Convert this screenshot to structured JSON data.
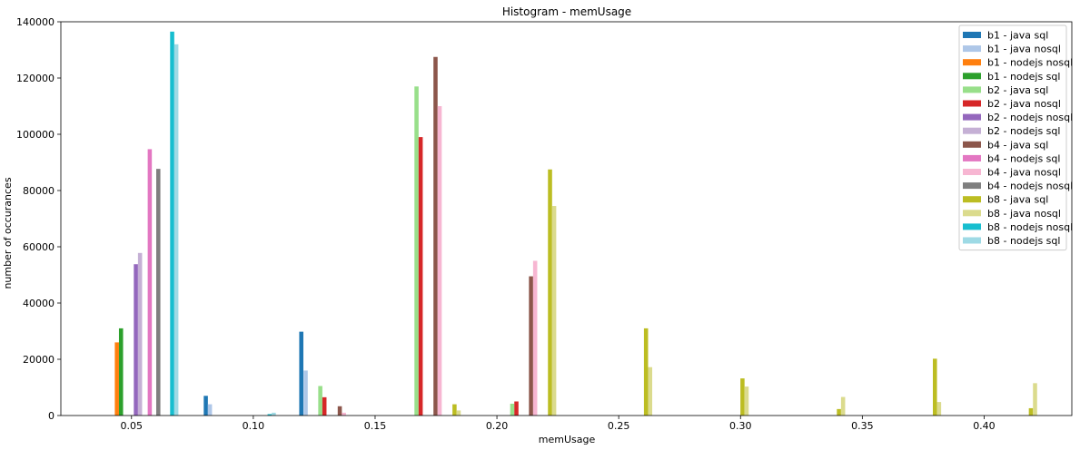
{
  "chart_data": {
    "type": "bar",
    "title": "Histogram - memUsage",
    "xlabel": "memUsage",
    "ylabel": "number of occurances",
    "xlim": [
      0.021,
      0.436
    ],
    "ylim": [
      0,
      140000
    ],
    "xticks": [
      0.05,
      0.1,
      0.15,
      0.2,
      0.25,
      0.3,
      0.35,
      0.4
    ],
    "xtick_labels": [
      "0.05",
      "0.10",
      "0.15",
      "0.20",
      "0.25",
      "0.30",
      "0.35",
      "0.40"
    ],
    "yticks": [
      0,
      20000,
      40000,
      60000,
      80000,
      100000,
      120000,
      140000
    ],
    "ytick_labels": [
      "0",
      "20000",
      "40000",
      "60000",
      "80000",
      "100000",
      "120000",
      "140000"
    ],
    "bar_width": 0.0017,
    "legend_position": "top-right",
    "grid": false,
    "series": [
      {
        "name": "b1 - java sql",
        "color": "#1f77b4",
        "points": [
          {
            "x": 0.0805,
            "y": 7000
          },
          {
            "x": 0.1197,
            "y": 29800
          }
        ]
      },
      {
        "name": "b1 - java nosql",
        "color": "#aec7e8",
        "points": [
          {
            "x": 0.0822,
            "y": 4000
          },
          {
            "x": 0.1215,
            "y": 16000
          }
        ]
      },
      {
        "name": "b1 - nodejs nosql",
        "color": "#ff7f0e",
        "points": [
          {
            "x": 0.044,
            "y": 26000
          }
        ]
      },
      {
        "name": "b1 - nodejs sql",
        "color": "#2ca02c",
        "points": [
          {
            "x": 0.0457,
            "y": 31000
          }
        ]
      },
      {
        "name": "b2 - java sql",
        "color": "#98df8a",
        "points": [
          {
            "x": 0.1275,
            "y": 10500
          },
          {
            "x": 0.167,
            "y": 117000
          },
          {
            "x": 0.2063,
            "y": 4200
          }
        ]
      },
      {
        "name": "b2 - java nosql",
        "color": "#d62728",
        "points": [
          {
            "x": 0.1292,
            "y": 6500
          },
          {
            "x": 0.1687,
            "y": 99000
          },
          {
            "x": 0.208,
            "y": 5000
          }
        ]
      },
      {
        "name": "b2 - nodejs nosql",
        "color": "#9467bd",
        "points": [
          {
            "x": 0.0518,
            "y": 53800
          }
        ]
      },
      {
        "name": "b2 - nodejs sql",
        "color": "#c5b0d5",
        "points": [
          {
            "x": 0.0535,
            "y": 57800
          }
        ]
      },
      {
        "name": "b4 - java sql",
        "color": "#8c564b",
        "points": [
          {
            "x": 0.1355,
            "y": 3300
          },
          {
            "x": 0.1748,
            "y": 127500
          },
          {
            "x": 0.214,
            "y": 49500
          }
        ]
      },
      {
        "name": "b4 - nodejs sql",
        "color": "#e377c2",
        "points": [
          {
            "x": 0.0575,
            "y": 94700
          }
        ]
      },
      {
        "name": "b4 - java nosql",
        "color": "#f7b6d2",
        "points": [
          {
            "x": 0.1372,
            "y": 1000
          },
          {
            "x": 0.1765,
            "y": 110000
          },
          {
            "x": 0.2157,
            "y": 55000
          }
        ]
      },
      {
        "name": "b4 - nodejs nosql",
        "color": "#7f7f7f",
        "points": [
          {
            "x": 0.061,
            "y": 87700
          }
        ]
      },
      {
        "name": "b8 - java sql",
        "color": "#bcbd22",
        "points": [
          {
            "x": 0.1826,
            "y": 4000
          },
          {
            "x": 0.2218,
            "y": 87500
          },
          {
            "x": 0.2612,
            "y": 31000
          },
          {
            "x": 0.3008,
            "y": 13200
          },
          {
            "x": 0.3404,
            "y": 2300
          },
          {
            "x": 0.3798,
            "y": 20200
          },
          {
            "x": 0.4192,
            "y": 2600
          }
        ]
      },
      {
        "name": "b8 - java nosql",
        "color": "#dbdb8d",
        "points": [
          {
            "x": 0.1843,
            "y": 1800
          },
          {
            "x": 0.2235,
            "y": 74500
          },
          {
            "x": 0.2629,
            "y": 17200
          },
          {
            "x": 0.3025,
            "y": 10300
          },
          {
            "x": 0.3421,
            "y": 6600
          },
          {
            "x": 0.3815,
            "y": 4800
          },
          {
            "x": 0.4209,
            "y": 11500
          }
        ]
      },
      {
        "name": "b8 - nodejs nosql",
        "color": "#17becf",
        "points": [
          {
            "x": 0.0667,
            "y": 136500
          },
          {
            "x": 0.1067,
            "y": 500
          }
        ]
      },
      {
        "name": "b8 - nodejs sql",
        "color": "#9edae5",
        "points": [
          {
            "x": 0.0684,
            "y": 132000
          },
          {
            "x": 0.1084,
            "y": 1000
          }
        ]
      }
    ]
  }
}
